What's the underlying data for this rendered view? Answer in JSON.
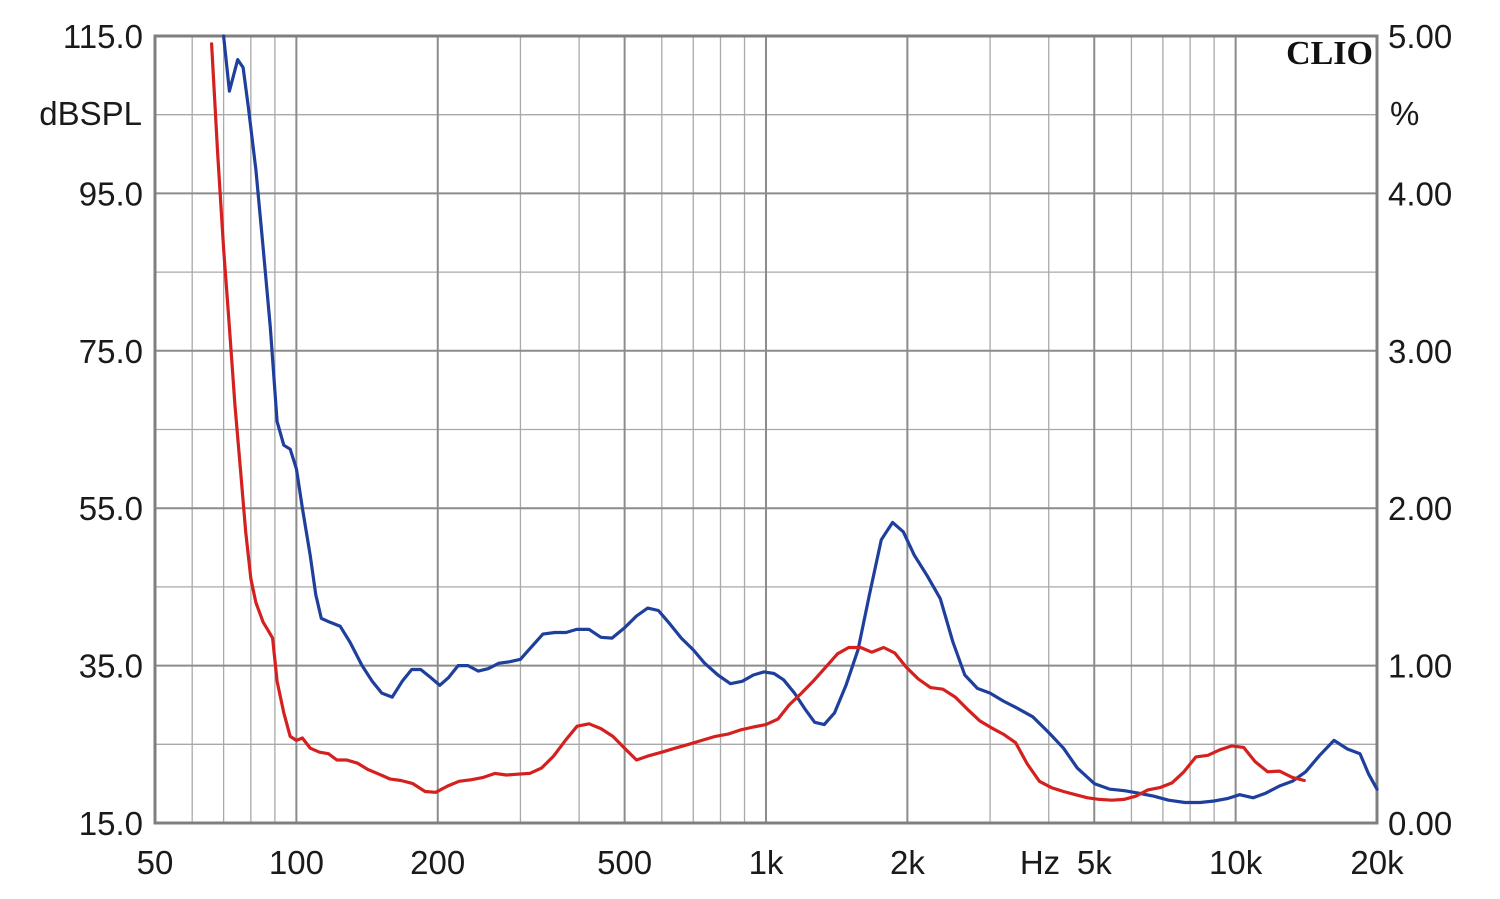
{
  "chart_data": {
    "type": "line",
    "brand": "CLIO",
    "title": "",
    "xlabel": "Hz",
    "ylabel_left": "dBSPL",
    "ylabel_right": "%",
    "x_scale": "log",
    "xlim": [
      50,
      20000
    ],
    "ylim_left": [
      15,
      115
    ],
    "ylim_right": [
      0,
      5
    ],
    "grid": true,
    "x_ticks": [
      {
        "value": 50,
        "label": "50"
      },
      {
        "value": 100,
        "label": "100"
      },
      {
        "value": 200,
        "label": "200"
      },
      {
        "value": 500,
        "label": "500"
      },
      {
        "value": 1000,
        "label": "1k"
      },
      {
        "value": 2000,
        "label": "2k"
      },
      {
        "value": 5000,
        "label": "5k"
      },
      {
        "value": 10000,
        "label": "10k"
      },
      {
        "value": 20000,
        "label": "20k"
      }
    ],
    "y_ticks_left": [
      {
        "value": 115,
        "label": "115.0"
      },
      {
        "value": 95,
        "label": "95.0"
      },
      {
        "value": 75,
        "label": "75.0"
      },
      {
        "value": 55,
        "label": "55.0"
      },
      {
        "value": 35,
        "label": "35.0"
      },
      {
        "value": 15,
        "label": "15.0"
      }
    ],
    "y_ticks_right": [
      {
        "value": 5,
        "label": "5.00"
      },
      {
        "value": 4,
        "label": "4.00"
      },
      {
        "value": 3,
        "label": "3.00"
      },
      {
        "value": 2,
        "label": "2.00"
      },
      {
        "value": 1,
        "label": "1.00"
      },
      {
        "value": 0,
        "label": "0.00"
      }
    ],
    "series": [
      {
        "color": "#1f3f9c",
        "axis": "left",
        "points": [
          [
            70,
            115
          ],
          [
            72,
            108
          ],
          [
            75,
            112
          ],
          [
            77,
            111
          ],
          [
            79,
            106
          ],
          [
            82,
            98
          ],
          [
            85,
            88
          ],
          [
            88,
            78
          ],
          [
            91,
            66
          ],
          [
            94,
            63
          ],
          [
            97,
            62.5
          ],
          [
            100,
            60
          ],
          [
            103,
            55
          ],
          [
            107,
            49
          ],
          [
            110,
            44
          ],
          [
            113,
            41
          ],
          [
            118,
            40.5
          ],
          [
            124,
            40
          ],
          [
            130,
            38
          ],
          [
            138,
            35
          ],
          [
            145,
            33
          ],
          [
            152,
            31.5
          ],
          [
            160,
            31
          ],
          [
            168,
            33
          ],
          [
            176,
            34.5
          ],
          [
            184,
            34.5
          ],
          [
            193,
            33.5
          ],
          [
            202,
            32.5
          ],
          [
            211,
            33.5
          ],
          [
            221,
            35
          ],
          [
            232,
            35
          ],
          [
            244,
            34.3
          ],
          [
            256,
            34.6
          ],
          [
            270,
            35.3
          ],
          [
            285,
            35.5
          ],
          [
            300,
            35.8
          ],
          [
            318,
            37.5
          ],
          [
            335,
            39
          ],
          [
            355,
            39.2
          ],
          [
            375,
            39.2
          ],
          [
            395,
            39.6
          ],
          [
            420,
            39.6
          ],
          [
            445,
            38.6
          ],
          [
            470,
            38.5
          ],
          [
            500,
            39.8
          ],
          [
            530,
            41.3
          ],
          [
            560,
            42.3
          ],
          [
            590,
            42
          ],
          [
            620,
            40.5
          ],
          [
            660,
            38.5
          ],
          [
            700,
            37
          ],
          [
            740,
            35.3
          ],
          [
            790,
            33.8
          ],
          [
            840,
            32.7
          ],
          [
            890,
            33
          ],
          [
            940,
            33.8
          ],
          [
            990,
            34.2
          ],
          [
            1040,
            34
          ],
          [
            1090,
            33.2
          ],
          [
            1150,
            31.5
          ],
          [
            1210,
            29.5
          ],
          [
            1270,
            27.8
          ],
          [
            1330,
            27.5
          ],
          [
            1400,
            29
          ],
          [
            1480,
            32.5
          ],
          [
            1570,
            37
          ],
          [
            1660,
            44
          ],
          [
            1760,
            51
          ],
          [
            1860,
            53.2
          ],
          [
            1960,
            52
          ],
          [
            2070,
            49
          ],
          [
            2200,
            46.5
          ],
          [
            2350,
            43.5
          ],
          [
            2500,
            38
          ],
          [
            2650,
            33.8
          ],
          [
            2820,
            32.1
          ],
          [
            3000,
            31.5
          ],
          [
            3200,
            30.5
          ],
          [
            3400,
            29.7
          ],
          [
            3700,
            28.5
          ],
          [
            4000,
            26.5
          ],
          [
            4300,
            24.5
          ],
          [
            4600,
            22
          ],
          [
            5000,
            20
          ],
          [
            5400,
            19.3
          ],
          [
            5800,
            19.1
          ],
          [
            6200,
            18.8
          ],
          [
            6700,
            18.4
          ],
          [
            7200,
            17.9
          ],
          [
            7800,
            17.6
          ],
          [
            8400,
            17.6
          ],
          [
            9000,
            17.8
          ],
          [
            9600,
            18.1
          ],
          [
            10200,
            18.6
          ],
          [
            10900,
            18.2
          ],
          [
            11600,
            18.8
          ],
          [
            12400,
            19.7
          ],
          [
            13200,
            20.3
          ],
          [
            14100,
            21.5
          ],
          [
            15100,
            23.6
          ],
          [
            16200,
            25.5
          ],
          [
            17300,
            24.4
          ],
          [
            18400,
            23.8
          ],
          [
            19200,
            21.2
          ],
          [
            20000,
            19.3
          ]
        ]
      },
      {
        "color": "#d4211f",
        "axis": "left",
        "points": [
          [
            66,
            114
          ],
          [
            68,
            100
          ],
          [
            70,
            88
          ],
          [
            72,
            78
          ],
          [
            74,
            68
          ],
          [
            76,
            60
          ],
          [
            78,
            52
          ],
          [
            80,
            46
          ],
          [
            82,
            43
          ],
          [
            85,
            40.5
          ],
          [
            87,
            39.5
          ],
          [
            89,
            38.5
          ],
          [
            91,
            33
          ],
          [
            94,
            29
          ],
          [
            97,
            26
          ],
          [
            100,
            25.5
          ],
          [
            103,
            25.8
          ],
          [
            107,
            24.5
          ],
          [
            112,
            24
          ],
          [
            117,
            23.8
          ],
          [
            122,
            23
          ],
          [
            128,
            23
          ],
          [
            135,
            22.6
          ],
          [
            142,
            21.8
          ],
          [
            150,
            21.2
          ],
          [
            158,
            20.6
          ],
          [
            167,
            20.4
          ],
          [
            177,
            20
          ],
          [
            188,
            19
          ],
          [
            198,
            18.9
          ],
          [
            210,
            19.7
          ],
          [
            222,
            20.3
          ],
          [
            236,
            20.5
          ],
          [
            250,
            20.8
          ],
          [
            265,
            21.3
          ],
          [
            280,
            21.1
          ],
          [
            296,
            21.2
          ],
          [
            314,
            21.3
          ],
          [
            333,
            22
          ],
          [
            353,
            23.5
          ],
          [
            374,
            25.5
          ],
          [
            396,
            27.3
          ],
          [
            420,
            27.6
          ],
          [
            445,
            27
          ],
          [
            472,
            26
          ],
          [
            500,
            24.5
          ],
          [
            530,
            23
          ],
          [
            560,
            23.5
          ],
          [
            600,
            24
          ],
          [
            640,
            24.5
          ],
          [
            685,
            25
          ],
          [
            730,
            25.5
          ],
          [
            780,
            26
          ],
          [
            830,
            26.3
          ],
          [
            880,
            26.8
          ],
          [
            940,
            27.2
          ],
          [
            1000,
            27.5
          ],
          [
            1060,
            28.2
          ],
          [
            1120,
            30
          ],
          [
            1190,
            31.5
          ],
          [
            1260,
            33
          ],
          [
            1340,
            34.8
          ],
          [
            1420,
            36.5
          ],
          [
            1500,
            37.3
          ],
          [
            1590,
            37.3
          ],
          [
            1680,
            36.7
          ],
          [
            1780,
            37.3
          ],
          [
            1880,
            36.6
          ],
          [
            1990,
            34.8
          ],
          [
            2110,
            33.3
          ],
          [
            2240,
            32.2
          ],
          [
            2380,
            32
          ],
          [
            2530,
            31
          ],
          [
            2680,
            29.5
          ],
          [
            2850,
            28
          ],
          [
            3020,
            27.1
          ],
          [
            3200,
            26.3
          ],
          [
            3400,
            25.2
          ],
          [
            3600,
            22.5
          ],
          [
            3820,
            20.3
          ],
          [
            4050,
            19.5
          ],
          [
            4300,
            19
          ],
          [
            4560,
            18.6
          ],
          [
            4840,
            18.2
          ],
          [
            5130,
            18
          ],
          [
            5450,
            17.9
          ],
          [
            5780,
            18
          ],
          [
            6130,
            18.4
          ],
          [
            6500,
            19.2
          ],
          [
            6900,
            19.5
          ],
          [
            7320,
            20.1
          ],
          [
            7760,
            21.5
          ],
          [
            8230,
            23.4
          ],
          [
            8730,
            23.6
          ],
          [
            9260,
            24.3
          ],
          [
            9820,
            24.8
          ],
          [
            10400,
            24.6
          ],
          [
            11000,
            22.8
          ],
          [
            11700,
            21.5
          ],
          [
            12400,
            21.6
          ],
          [
            13200,
            20.8
          ],
          [
            14000,
            20.4
          ]
        ]
      }
    ]
  }
}
